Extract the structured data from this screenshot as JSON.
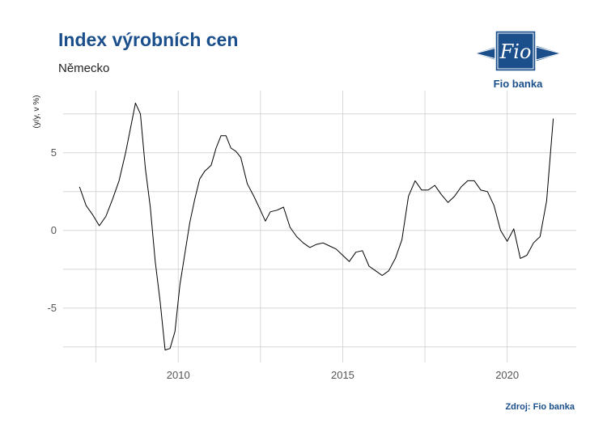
{
  "header": {
    "title": "Index výrobních cen",
    "subtitle": "Německo"
  },
  "logo": {
    "mark_text": "Fio",
    "name": "Fio banka",
    "brand_color": "#1a4f8b"
  },
  "footer": {
    "source": "Zdroj: Fio banka"
  },
  "chart_data": {
    "type": "line",
    "title": "Index výrobních cen",
    "subtitle": "Německo",
    "ylabel": "(y/y, v %)",
    "xlabel": "",
    "x_ticks": [
      2010,
      2015,
      2020
    ],
    "y_ticks": [
      -5,
      0,
      5
    ],
    "y_tick_labels": [
      "-5",
      "0",
      "5"
    ],
    "xlim": [
      2006.5,
      2022.1
    ],
    "ylim": [
      -8.5,
      9.0
    ],
    "grid": true,
    "line_color": "#000000",
    "series": [
      {
        "x": [
          2007.0,
          2007.2,
          2007.4,
          2007.6,
          2007.8,
          2008.0,
          2008.2,
          2008.4,
          2008.55,
          2008.7,
          2008.85,
          2009.0,
          2009.15,
          2009.3,
          2009.45,
          2009.6,
          2009.75,
          2009.9,
          2010.05,
          2010.2,
          2010.35,
          2010.5,
          2010.65,
          2010.8,
          2011.0,
          2011.15,
          2011.3,
          2011.45,
          2011.6,
          2011.75,
          2011.9,
          2012.1,
          2012.3,
          2012.5,
          2012.65,
          2012.8,
          2013.0,
          2013.2,
          2013.4,
          2013.6,
          2013.8,
          2014.0,
          2014.2,
          2014.4,
          2014.6,
          2014.8,
          2015.0,
          2015.2,
          2015.4,
          2015.6,
          2015.8,
          2016.0,
          2016.2,
          2016.4,
          2016.6,
          2016.8,
          2017.0,
          2017.2,
          2017.4,
          2017.6,
          2017.8,
          2018.0,
          2018.2,
          2018.4,
          2018.6,
          2018.8,
          2019.0,
          2019.2,
          2019.4,
          2019.6,
          2019.8,
          2020.0,
          2020.2,
          2020.4,
          2020.6,
          2020.8,
          2021.0,
          2021.2,
          2021.4
        ],
        "y": [
          2.8,
          1.6,
          1.0,
          0.3,
          0.9,
          2.0,
          3.2,
          5.0,
          6.6,
          8.2,
          7.5,
          4.0,
          1.5,
          -2.0,
          -4.6,
          -7.7,
          -7.6,
          -6.5,
          -3.5,
          -1.5,
          0.5,
          2.0,
          3.3,
          3.8,
          4.2,
          5.3,
          6.1,
          6.1,
          5.3,
          5.1,
          4.7,
          3.0,
          2.2,
          1.3,
          0.6,
          1.2,
          1.3,
          1.5,
          0.2,
          -0.4,
          -0.8,
          -1.1,
          -0.9,
          -0.8,
          -1.0,
          -1.2,
          -1.6,
          -2.0,
          -1.4,
          -1.3,
          -2.3,
          -2.6,
          -2.9,
          -2.6,
          -1.8,
          -0.6,
          2.2,
          3.2,
          2.6,
          2.6,
          2.9,
          2.3,
          1.8,
          2.2,
          2.8,
          3.2,
          3.2,
          2.6,
          2.5,
          1.6,
          0.0,
          -0.7,
          0.1,
          -1.8,
          -1.6,
          -0.8,
          -0.4,
          1.9,
          7.2
        ]
      }
    ]
  }
}
